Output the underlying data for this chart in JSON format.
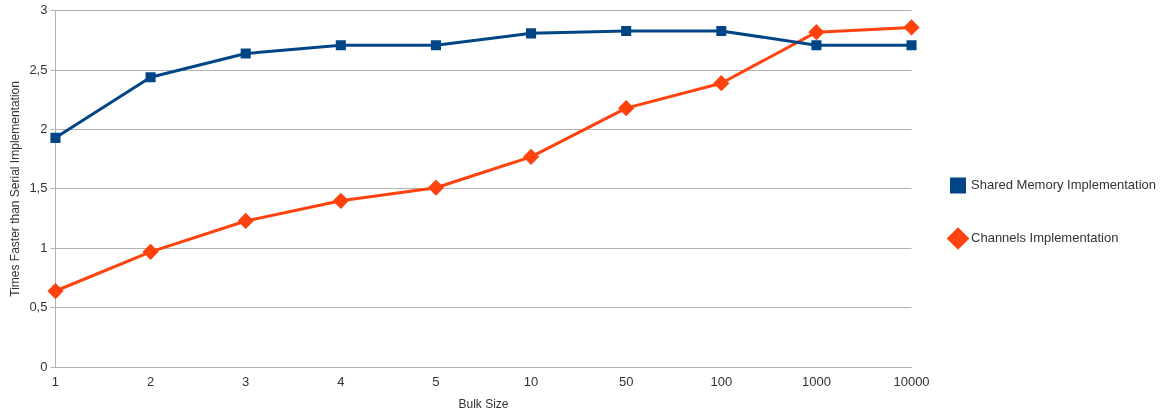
{
  "chart_data": {
    "type": "line",
    "xlabel": "Bulk Size",
    "ylabel": "Times Faster than Serial Implementation",
    "categories": [
      "1",
      "2",
      "3",
      "4",
      "5",
      "10",
      "50",
      "100",
      "1000",
      "10000"
    ],
    "series": [
      {
        "name": "Shared Memory Implementation",
        "color": "#004586",
        "marker": "square",
        "values": [
          1.93,
          2.44,
          2.64,
          2.71,
          2.71,
          2.81,
          2.83,
          2.83,
          2.71,
          2.71
        ]
      },
      {
        "name": "Channels Implementation",
        "color": "#ff420e",
        "marker": "diamond",
        "values": [
          0.64,
          0.97,
          1.23,
          1.4,
          1.51,
          1.77,
          2.18,
          2.39,
          2.82,
          2.86
        ]
      }
    ],
    "ylim": [
      0,
      3
    ],
    "yticks": [
      0,
      {
        "value": 0.5,
        "label": "0,5"
      },
      1,
      {
        "value": 1.5,
        "label": "1,5"
      },
      2,
      {
        "value": 2.5,
        "label": "2,5"
      },
      3
    ],
    "grid": "y",
    "legend": "right",
    "line_style": "solid"
  }
}
